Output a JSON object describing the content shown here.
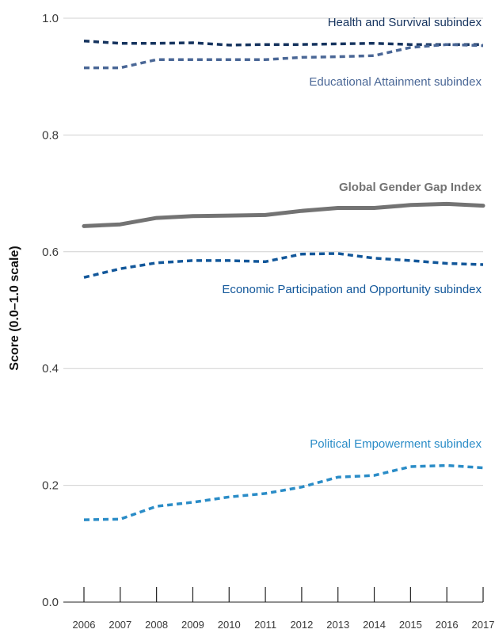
{
  "chart_data": {
    "type": "line",
    "ylabel": "Score (0.0–1.0 scale)",
    "xlabel": "",
    "ylim": [
      0.0,
      1.0
    ],
    "yticks": [
      "0.0",
      "0.2",
      "0.4",
      "0.6",
      "0.8",
      "1.0"
    ],
    "x": [
      "2006",
      "2007",
      "2008",
      "2009",
      "2010",
      "2011",
      "2012",
      "2013",
      "2014",
      "2015",
      "2016",
      "2017"
    ],
    "grid": true,
    "series": [
      {
        "name": "Health and Survival subindex",
        "color": "#15335e",
        "style": "dashed",
        "values": [
          0.961,
          0.957,
          0.957,
          0.958,
          0.954,
          0.955,
          0.955,
          0.956,
          0.957,
          0.955,
          0.955,
          0.955
        ]
      },
      {
        "name": "Educational Attainment subindex",
        "color": "#4a6796",
        "style": "dashed",
        "values": [
          0.915,
          0.915,
          0.929,
          0.929,
          0.929,
          0.929,
          0.933,
          0.934,
          0.936,
          0.95,
          0.955,
          0.953
        ]
      },
      {
        "name": "Global Gender Gap Index",
        "color": "#737373",
        "style": "solid",
        "values": [
          0.644,
          0.647,
          0.658,
          0.661,
          0.662,
          0.663,
          0.67,
          0.675,
          0.675,
          0.68,
          0.682,
          0.679
        ]
      },
      {
        "name": "Economic Participation and Opportunity subindex",
        "color": "#12579a",
        "style": "dashed",
        "values": [
          0.556,
          0.571,
          0.581,
          0.585,
          0.585,
          0.583,
          0.596,
          0.597,
          0.589,
          0.585,
          0.58,
          0.578
        ]
      },
      {
        "name": "Political Empowerment subindex",
        "color": "#2a8cc7",
        "style": "dashed",
        "values": [
          0.141,
          0.142,
          0.164,
          0.171,
          0.18,
          0.186,
          0.197,
          0.214,
          0.217,
          0.232,
          0.234,
          0.23
        ]
      }
    ]
  }
}
